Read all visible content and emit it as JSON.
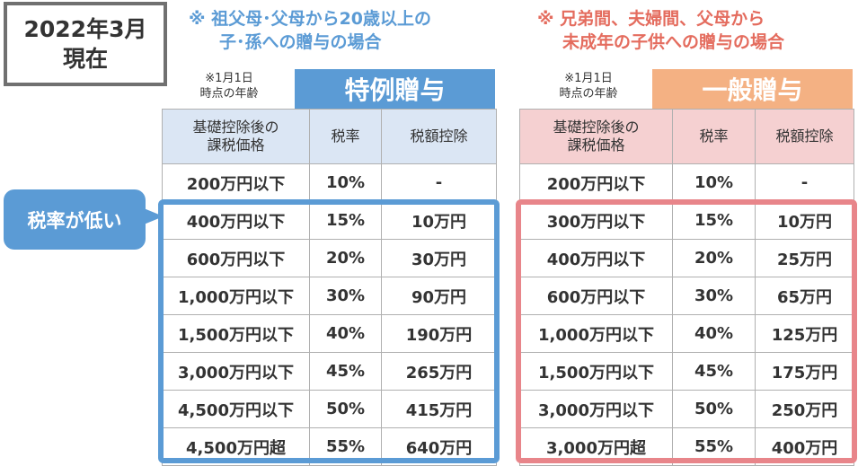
{
  "date_label": [
    "2022年3月",
    "現在"
  ],
  "left": {
    "heading": [
      "※ 祖父母･父母から20歳以上の",
      "子･孫への贈与の場合"
    ],
    "note": [
      "※1月1日",
      "時点の年齢"
    ],
    "banner": "特例贈与",
    "banner_color": "#5b9bd5",
    "columns": [
      [
        "基礎控除後の",
        "課税価格"
      ],
      [
        "税率"
      ],
      [
        "税額控除"
      ]
    ],
    "rows": [
      [
        "200万円以下",
        "10%",
        "-"
      ],
      [
        "400万円以下",
        "15%",
        "10万円"
      ],
      [
        "600万円以下",
        "20%",
        "30万円"
      ],
      [
        "1,000万円以下",
        "30%",
        "90万円"
      ],
      [
        "1,500万円以下",
        "40%",
        "190万円"
      ],
      [
        "3,000万円以下",
        "45%",
        "265万円"
      ],
      [
        "4,500万円以下",
        "50%",
        "415万円"
      ],
      [
        "4,500万円超",
        "55%",
        "640万円"
      ]
    ]
  },
  "right": {
    "heading": [
      "※ 兄弟間、夫婦間、父母から",
      "未成年の子供への贈与の場合"
    ],
    "note": [
      "※1月1日",
      "時点の年齢"
    ],
    "banner": "一般贈与",
    "banner_color": "#f4b183",
    "columns": [
      [
        "基礎控除後の",
        "課税価格"
      ],
      [
        "税率"
      ],
      [
        "税額控除"
      ]
    ],
    "rows": [
      [
        "200万円以下",
        "10%",
        "-"
      ],
      [
        "300万円以下",
        "15%",
        "10万円"
      ],
      [
        "400万円以下",
        "20%",
        "25万円"
      ],
      [
        "600万円以下",
        "30%",
        "65万円"
      ],
      [
        "1,000万円以下",
        "40%",
        "125万円"
      ],
      [
        "1,500万円以下",
        "45%",
        "175万円"
      ],
      [
        "3,000万円以下",
        "50%",
        "250万円"
      ],
      [
        "3,000万円超",
        "55%",
        "400万円"
      ]
    ]
  },
  "callout": "税率が低い"
}
